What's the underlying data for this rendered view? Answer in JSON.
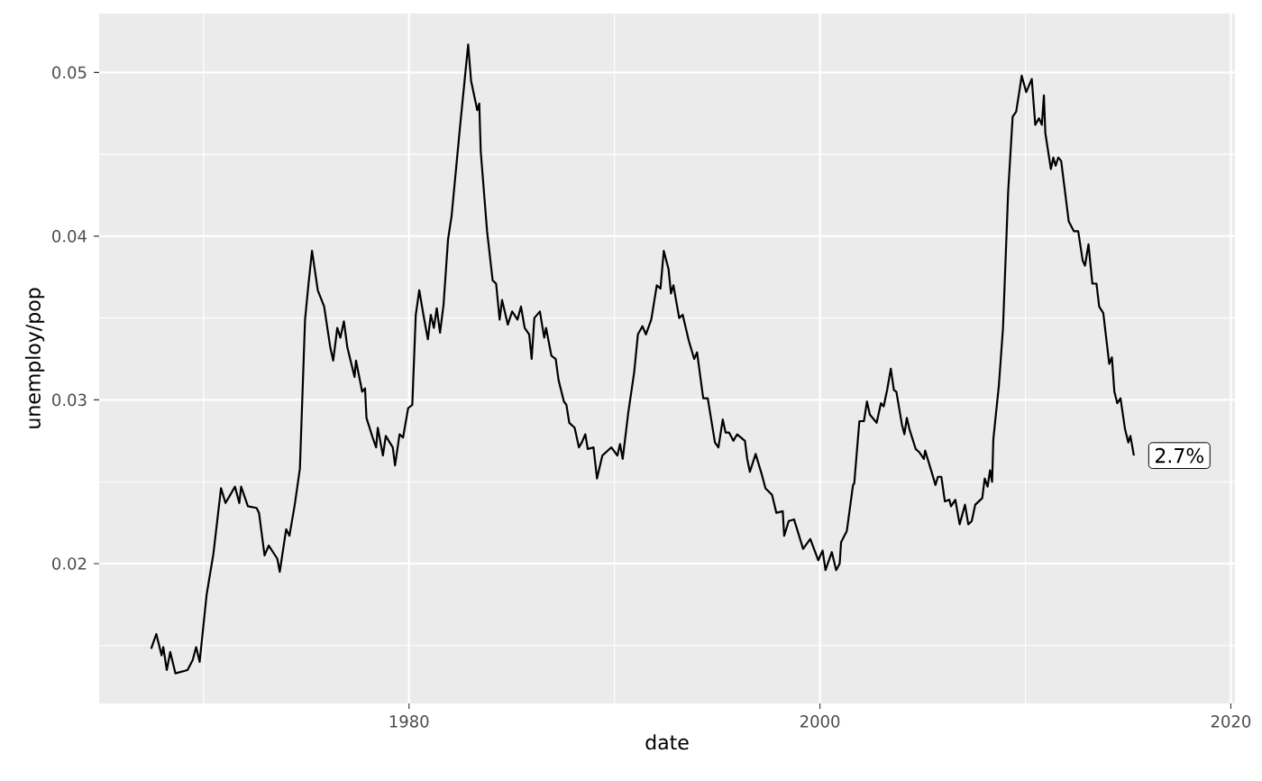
{
  "chart_data": {
    "type": "line",
    "xlabel": "date",
    "ylabel": "unemploy/pop",
    "xlim": [
      1964.92,
      2020.2
    ],
    "ylim": [
      0.01146,
      0.0536
    ],
    "xticks": [
      1980,
      2000,
      2020
    ],
    "yticks": [
      0.02,
      0.03,
      0.04,
      0.05
    ],
    "grid": true,
    "series": [
      {
        "color": "#000000",
        "x": [
          1967.45,
          1967.7,
          1967.96,
          1968.04,
          1968.21,
          1968.38,
          1968.63,
          1969.22,
          1969.47,
          1969.64,
          1969.81,
          1970.15,
          1970.48,
          1970.85,
          1971.07,
          1971.53,
          1971.74,
          1971.83,
          1972.16,
          1972.58,
          1972.7,
          1972.97,
          1973.17,
          1973.59,
          1973.71,
          1974.02,
          1974.18,
          1974.44,
          1974.69,
          1974.94,
          1975.11,
          1975.28,
          1975.56,
          1975.87,
          1976.17,
          1976.31,
          1976.51,
          1976.66,
          1976.83,
          1977.0,
          1977.35,
          1977.42,
          1977.72,
          1977.86,
          1977.93,
          1978.23,
          1978.4,
          1978.48,
          1978.73,
          1978.87,
          1979.21,
          1979.32,
          1979.54,
          1979.71,
          1979.96,
          1980.16,
          1980.33,
          1980.5,
          1980.7,
          1980.92,
          1981.06,
          1981.21,
          1981.35,
          1981.51,
          1981.68,
          1981.9,
          1982.02,
          1982.07,
          1982.5,
          1982.88,
          1983.02,
          1983.32,
          1983.42,
          1983.49,
          1983.8,
          1984.07,
          1984.24,
          1984.41,
          1984.53,
          1984.81,
          1985.02,
          1985.28,
          1985.45,
          1985.63,
          1985.85,
          1985.97,
          1986.1,
          1986.37,
          1986.58,
          1986.67,
          1986.93,
          1987.14,
          1987.28,
          1987.54,
          1987.66,
          1987.8,
          1988.06,
          1988.27,
          1988.41,
          1988.58,
          1988.7,
          1988.98,
          1989.15,
          1989.41,
          1989.85,
          1990.14,
          1990.27,
          1990.4,
          1990.67,
          1990.96,
          1991.14,
          1991.36,
          1991.53,
          1991.79,
          1992.06,
          1992.24,
          1992.4,
          1992.63,
          1992.75,
          1992.87,
          1993.15,
          1993.32,
          1993.62,
          1993.88,
          1994.02,
          1994.32,
          1994.54,
          1994.89,
          1995.06,
          1995.27,
          1995.41,
          1995.58,
          1995.79,
          1995.97,
          1996.35,
          1996.46,
          1996.59,
          1996.87,
          1997.18,
          1997.35,
          1997.67,
          1997.88,
          1998.19,
          1998.26,
          1998.48,
          1998.74,
          1999.01,
          1999.18,
          1999.53,
          1999.92,
          2000.13,
          2000.27,
          2000.58,
          2000.79,
          2000.96,
          2001.03,
          2001.31,
          2001.61,
          2001.67,
          2001.92,
          2002.14,
          2002.29,
          2002.43,
          2002.76,
          2002.97,
          2003.1,
          2003.27,
          2003.45,
          2003.6,
          2003.72,
          2003.99,
          2004.11,
          2004.23,
          2004.36,
          2004.66,
          2004.84,
          2005.06,
          2005.12,
          2005.46,
          2005.62,
          2005.74,
          2005.91,
          2006.08,
          2006.3,
          2006.38,
          2006.59,
          2006.8,
          2007.06,
          2007.22,
          2007.39,
          2007.56,
          2007.9,
          2008.02,
          2008.16,
          2008.28,
          2008.38,
          2008.44,
          2008.71,
          2008.91,
          2009.16,
          2009.38,
          2009.55,
          2009.7,
          2009.82,
          2010.04,
          2010.31,
          2010.48,
          2010.66,
          2010.8,
          2010.9,
          2010.97,
          2011.24,
          2011.36,
          2011.47,
          2011.6,
          2011.74,
          2012.11,
          2012.36,
          2012.57,
          2012.79,
          2012.9,
          2013.07,
          2013.26,
          2013.46,
          2013.59,
          2013.79,
          2014.08,
          2014.21,
          2014.33,
          2014.47,
          2014.63,
          2014.85,
          2015.01,
          2015.11,
          2015.28
        ],
        "values": [
          0.0148,
          0.0157,
          0.0144,
          0.0149,
          0.0135,
          0.0146,
          0.0133,
          0.0135,
          0.0141,
          0.0149,
          0.014,
          0.0181,
          0.0206,
          0.0246,
          0.0237,
          0.0247,
          0.0237,
          0.0247,
          0.0235,
          0.0234,
          0.0231,
          0.0205,
          0.0211,
          0.0203,
          0.0195,
          0.0221,
          0.0217,
          0.0236,
          0.0258,
          0.0349,
          0.0371,
          0.0391,
          0.0367,
          0.0357,
          0.0332,
          0.0324,
          0.0344,
          0.0338,
          0.0348,
          0.0332,
          0.0314,
          0.0324,
          0.0305,
          0.0307,
          0.0289,
          0.0277,
          0.0271,
          0.0283,
          0.0266,
          0.0278,
          0.0271,
          0.026,
          0.0279,
          0.0277,
          0.0295,
          0.0297,
          0.0352,
          0.0367,
          0.0352,
          0.0337,
          0.0352,
          0.0344,
          0.0356,
          0.0341,
          0.0358,
          0.0398,
          0.0408,
          0.0412,
          0.0469,
          0.0517,
          0.0495,
          0.0477,
          0.0481,
          0.0452,
          0.0403,
          0.0373,
          0.0371,
          0.0349,
          0.0361,
          0.0346,
          0.0354,
          0.0349,
          0.0357,
          0.0344,
          0.034,
          0.0325,
          0.035,
          0.0354,
          0.0338,
          0.0344,
          0.0327,
          0.0325,
          0.0312,
          0.0299,
          0.0297,
          0.0286,
          0.0283,
          0.0271,
          0.0274,
          0.0279,
          0.027,
          0.0271,
          0.0252,
          0.0266,
          0.0271,
          0.0266,
          0.0273,
          0.0264,
          0.0292,
          0.0317,
          0.034,
          0.0345,
          0.034,
          0.0349,
          0.037,
          0.0368,
          0.0391,
          0.038,
          0.0365,
          0.037,
          0.035,
          0.0352,
          0.0336,
          0.0325,
          0.0329,
          0.0301,
          0.0301,
          0.0274,
          0.0271,
          0.0288,
          0.028,
          0.028,
          0.0275,
          0.0279,
          0.0275,
          0.0264,
          0.0256,
          0.0267,
          0.0254,
          0.0246,
          0.0242,
          0.0231,
          0.0232,
          0.0217,
          0.0226,
          0.0227,
          0.0216,
          0.0209,
          0.0215,
          0.0202,
          0.0208,
          0.0196,
          0.0207,
          0.0196,
          0.02,
          0.0213,
          0.022,
          0.0248,
          0.0249,
          0.0287,
          0.0287,
          0.0299,
          0.0291,
          0.0286,
          0.0298,
          0.0296,
          0.0306,
          0.0319,
          0.0306,
          0.0305,
          0.0285,
          0.0279,
          0.0289,
          0.0282,
          0.027,
          0.0268,
          0.0264,
          0.0269,
          0.0255,
          0.0248,
          0.0253,
          0.0253,
          0.0238,
          0.0239,
          0.0235,
          0.0239,
          0.0224,
          0.0236,
          0.0224,
          0.0226,
          0.0236,
          0.024,
          0.0252,
          0.0247,
          0.0257,
          0.025,
          0.0276,
          0.0309,
          0.0344,
          0.0427,
          0.0473,
          0.0476,
          0.0488,
          0.0498,
          0.0488,
          0.0496,
          0.0468,
          0.0472,
          0.0468,
          0.0486,
          0.0463,
          0.0441,
          0.0448,
          0.0443,
          0.0448,
          0.0446,
          0.0409,
          0.0403,
          0.0403,
          0.0385,
          0.0382,
          0.0395,
          0.0371,
          0.0371,
          0.0357,
          0.0353,
          0.0322,
          0.0326,
          0.0305,
          0.0298,
          0.0301,
          0.0282,
          0.0274,
          0.0278,
          0.0266
        ]
      }
    ],
    "annotations": [
      {
        "text": "2.7%",
        "x": 2015.28,
        "y": 0.0266
      }
    ]
  }
}
